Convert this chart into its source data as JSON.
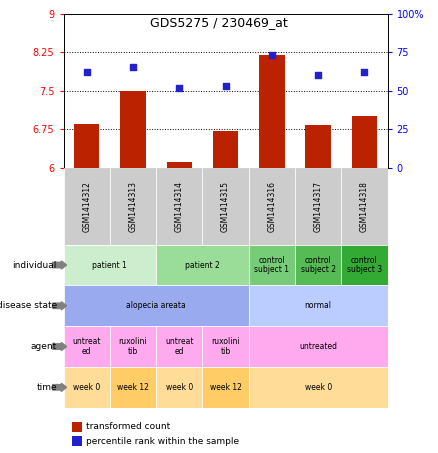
{
  "title": "GDS5275 / 230469_at",
  "samples": [
    "GSM1414312",
    "GSM1414313",
    "GSM1414314",
    "GSM1414315",
    "GSM1414316",
    "GSM1414317",
    "GSM1414318"
  ],
  "bar_values": [
    6.85,
    7.5,
    6.1,
    6.72,
    8.2,
    6.83,
    7.0
  ],
  "dot_values": [
    62,
    65,
    52,
    53,
    73,
    60,
    62
  ],
  "ylim_left": [
    6,
    9
  ],
  "ylim_right": [
    0,
    100
  ],
  "yticks_left": [
    6,
    6.75,
    7.5,
    8.25,
    9
  ],
  "yticks_right": [
    0,
    25,
    50,
    75,
    100
  ],
  "ytick_labels_left": [
    "6",
    "6.75",
    "7.5",
    "8.25",
    "9"
  ],
  "ytick_labels_right": [
    "0",
    "25",
    "50",
    "75",
    "100%"
  ],
  "bar_color": "#bb2200",
  "dot_color": "#2222cc",
  "dotted_line_y": [
    6.75,
    7.5,
    8.25
  ],
  "sample_box_color": "#cccccc",
  "rows": {
    "individual": {
      "label": "individual",
      "groups": [
        {
          "text": "patient 1",
          "span": [
            0,
            1
          ],
          "color": "#cceecc"
        },
        {
          "text": "patient 2",
          "span": [
            2,
            3
          ],
          "color": "#99dd99"
        },
        {
          "text": "control\nsubject 1",
          "span": [
            4,
            4
          ],
          "color": "#77cc77"
        },
        {
          "text": "control\nsubject 2",
          "span": [
            5,
            5
          ],
          "color": "#55bb55"
        },
        {
          "text": "control\nsubject 3",
          "span": [
            6,
            6
          ],
          "color": "#33aa33"
        }
      ]
    },
    "disease_state": {
      "label": "disease state",
      "groups": [
        {
          "text": "alopecia areata",
          "span": [
            0,
            3
          ],
          "color": "#99aaee"
        },
        {
          "text": "normal",
          "span": [
            4,
            6
          ],
          "color": "#bbccff"
        }
      ]
    },
    "agent": {
      "label": "agent",
      "groups": [
        {
          "text": "untreat\ned",
          "span": [
            0,
            0
          ],
          "color": "#ffaaee"
        },
        {
          "text": "ruxolini\ntib",
          "span": [
            1,
            1
          ],
          "color": "#ffaaee"
        },
        {
          "text": "untreat\ned",
          "span": [
            2,
            2
          ],
          "color": "#ffaaee"
        },
        {
          "text": "ruxolini\ntib",
          "span": [
            3,
            3
          ],
          "color": "#ffaaee"
        },
        {
          "text": "untreated",
          "span": [
            4,
            6
          ],
          "color": "#ffaaee"
        }
      ]
    },
    "time": {
      "label": "time",
      "groups": [
        {
          "text": "week 0",
          "span": [
            0,
            0
          ],
          "color": "#ffdd99"
        },
        {
          "text": "week 12",
          "span": [
            1,
            1
          ],
          "color": "#ffcc66"
        },
        {
          "text": "week 0",
          "span": [
            2,
            2
          ],
          "color": "#ffdd99"
        },
        {
          "text": "week 12",
          "span": [
            3,
            3
          ],
          "color": "#ffcc66"
        },
        {
          "text": "week 0",
          "span": [
            4,
            6
          ],
          "color": "#ffdd99"
        }
      ]
    }
  },
  "row_order": [
    "individual",
    "disease_state",
    "agent",
    "time"
  ],
  "row_labels": [
    "individual",
    "disease state",
    "agent",
    "time"
  ],
  "legend_items": [
    {
      "color": "#bb2200",
      "label": "transformed count"
    },
    {
      "color": "#2222cc",
      "label": "percentile rank within the sample"
    }
  ],
  "bg_color": "#ffffff"
}
